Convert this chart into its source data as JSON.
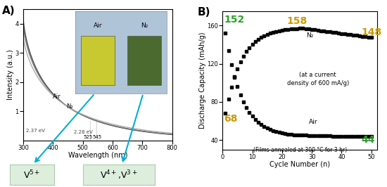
{
  "panel_b": {
    "title": "B)",
    "xlabel": "Cycle Number (n)",
    "ylabel": "Discharge Capacity (mAh/g)",
    "xlim": [
      0,
      52
    ],
    "ylim": [
      30,
      175
    ],
    "yticks": [
      40,
      80,
      120,
      160
    ],
    "xticks": [
      0,
      10,
      20,
      30,
      40,
      50
    ],
    "annotation_text": "(at a current\ndensity of 600 mA/g)",
    "annotation2_text": "(Films annealed at 300 °C for 3 hr)",
    "n2_label": "N₂",
    "air_label": "Air",
    "n2_start_val": 152,
    "n2_peak_val": 158,
    "n2_end_val": 148,
    "air_start_val": 68,
    "air_end_val": 44,
    "color_green": "#2ca02c",
    "color_gold": "#cc9900",
    "dot_color": "#222222"
  },
  "panel_a": {
    "title": "A)",
    "xlabel": "Wavelength (nm)",
    "ylabel": "Intensity (a.u.)",
    "xlim": [
      300,
      800
    ],
    "ylim": [
      0,
      4.5
    ],
    "yticks": [
      1,
      2,
      3,
      4
    ],
    "xticks": [
      300,
      400,
      500,
      600,
      700,
      800
    ],
    "air_label": "Air",
    "n2_label": "N₂",
    "air_bandgap": "2.37 eV",
    "n2_bandgap": "2.28 eV",
    "wl_air": "525",
    "wl_n2": "545",
    "v5_label": "V⁵⁺",
    "v43_label": "V⁴⁺,V³⁺",
    "inset_air_label": "Air",
    "inset_n2_label": "N₂",
    "inset_bg": "#b0c4d8",
    "air_sample_color": "#c8c830",
    "n2_sample_color": "#4a6a30"
  }
}
